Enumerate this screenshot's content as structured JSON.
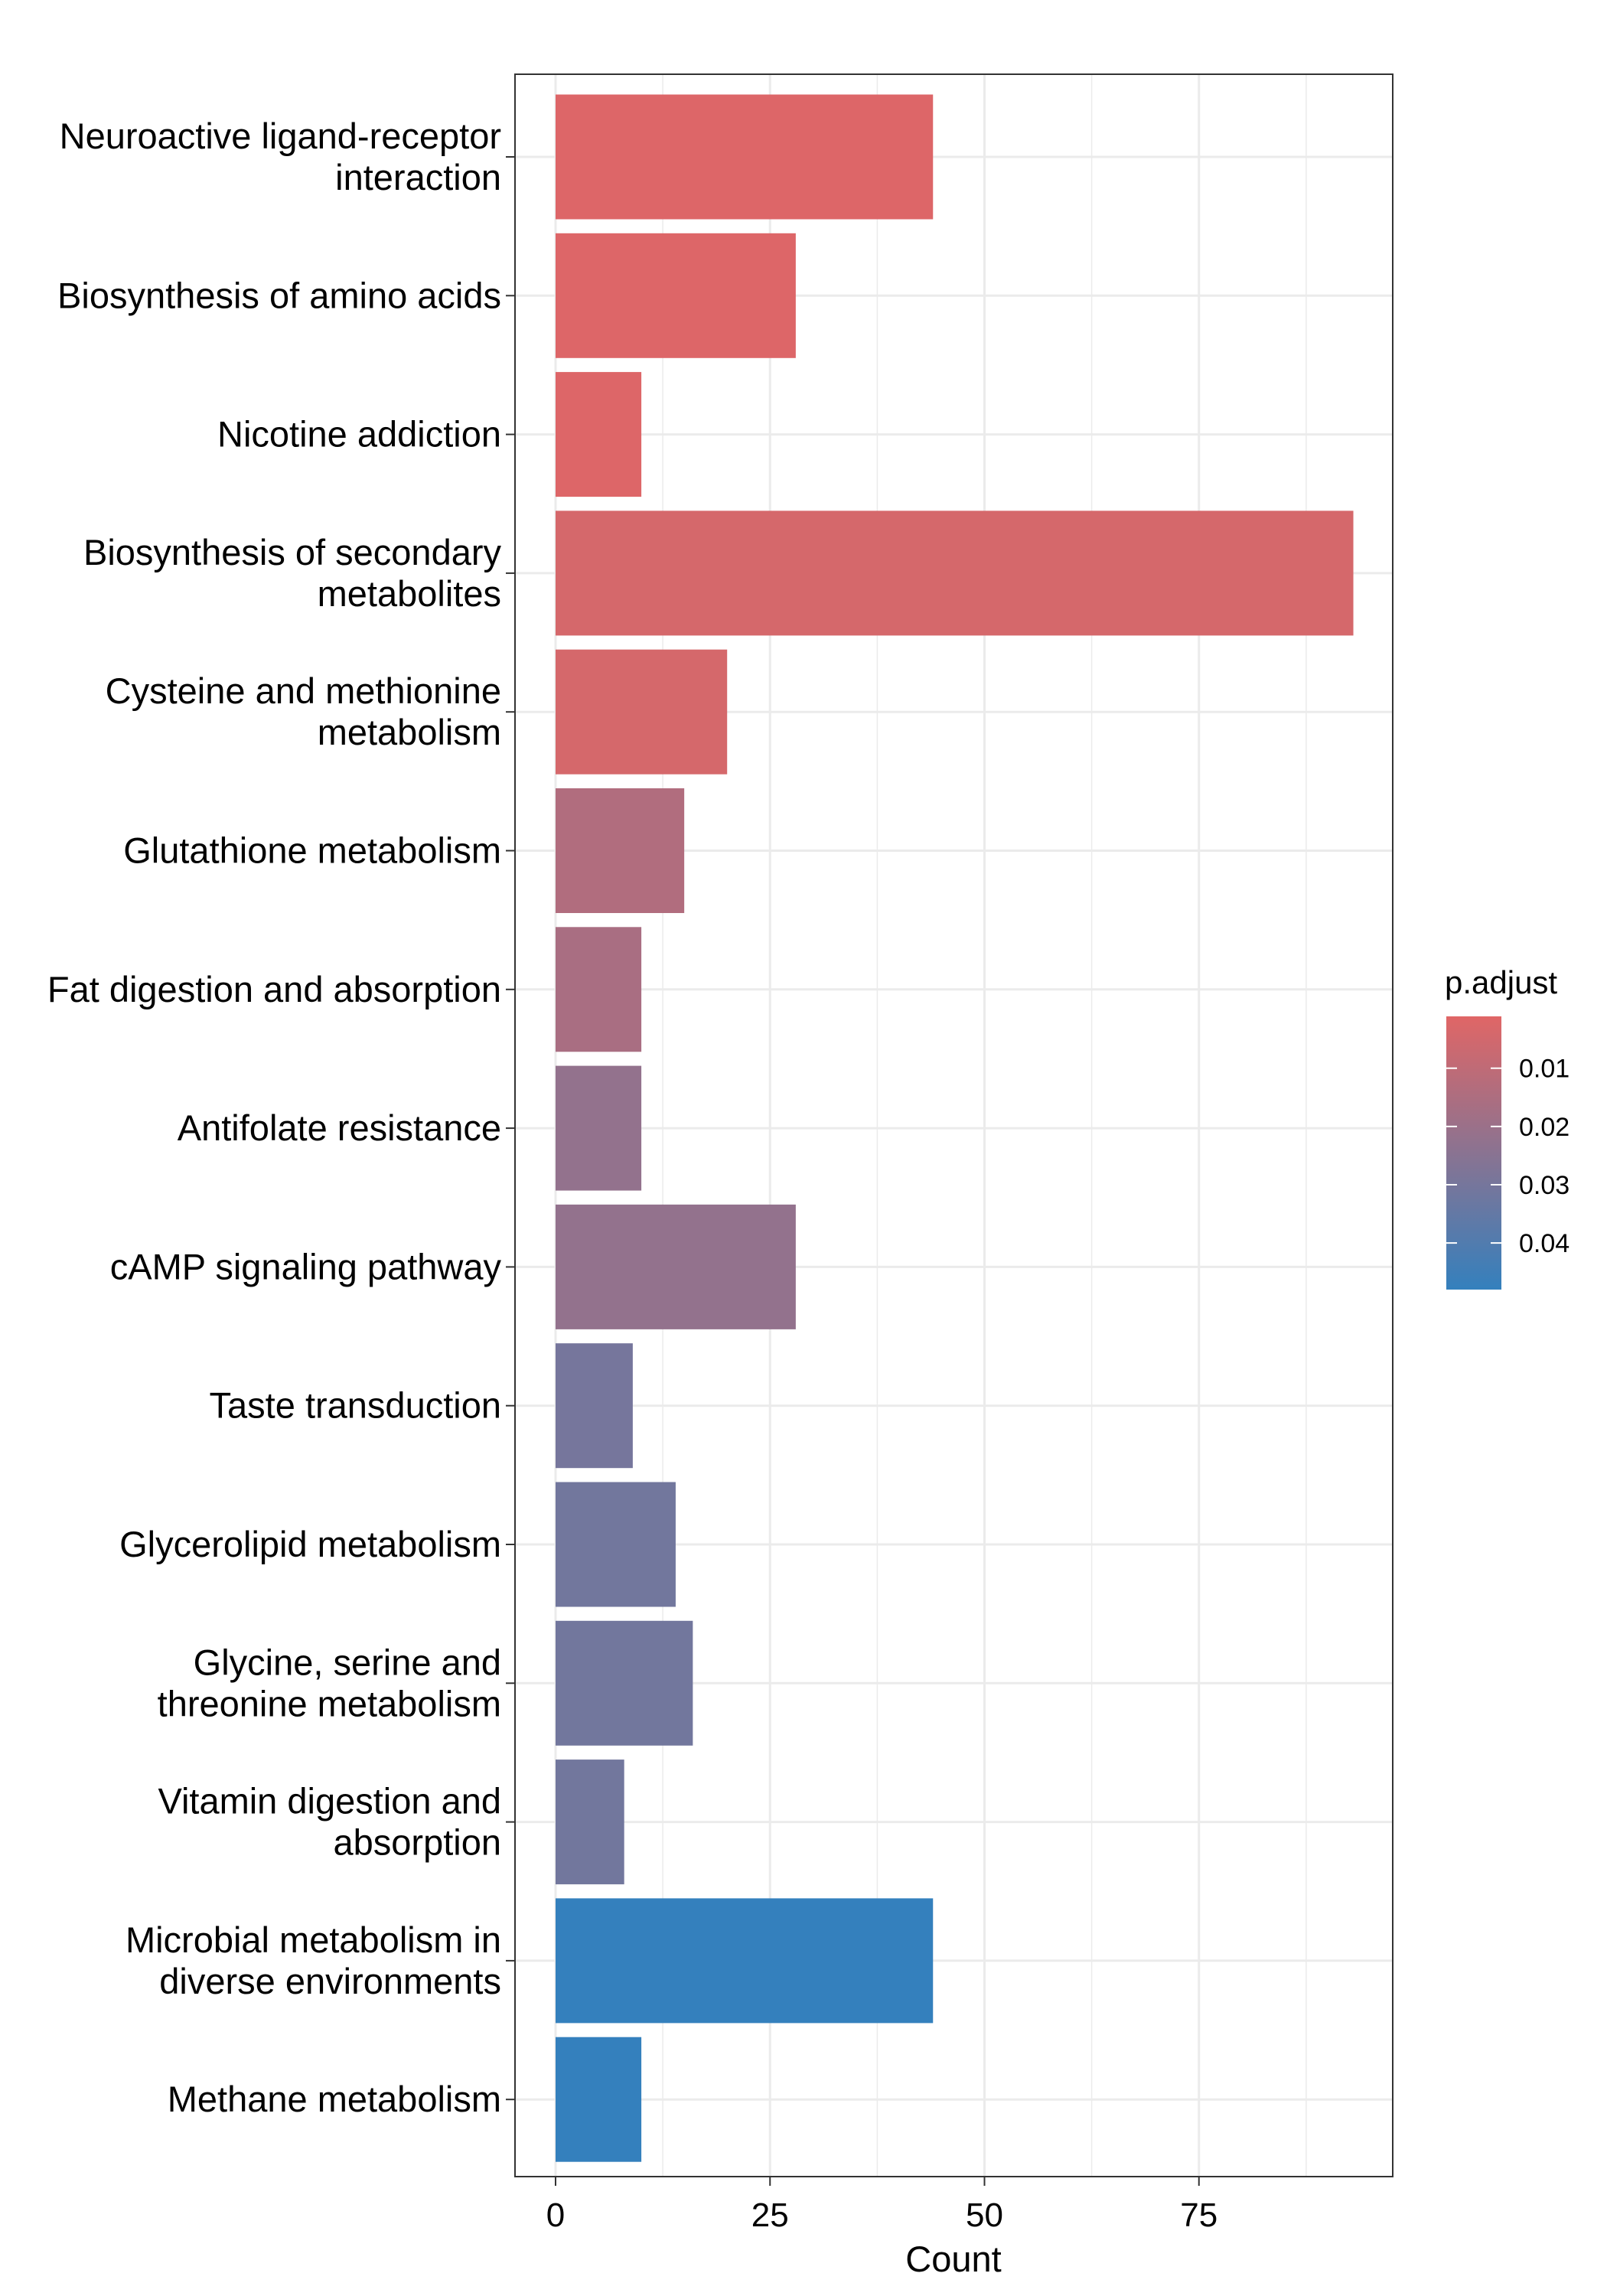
{
  "chart_data": {
    "type": "bar",
    "orientation": "horizontal",
    "xlabel": "Count",
    "ylabel": "",
    "xlim": [
      0,
      97.5
    ],
    "xticks": [
      0,
      25,
      50,
      75
    ],
    "grid": true,
    "legend": {
      "title": "p.adjust",
      "placement": "right",
      "ticks": [
        "0.01",
        "0.02",
        "0.03",
        "0.04"
      ],
      "tick_values": [
        0.01,
        0.02,
        0.03,
        0.04
      ],
      "range": [
        0.0011,
        0.048
      ],
      "color_low": "#E06666",
      "color_high": "#3480BD"
    },
    "categories": [
      [
        "Neuroactive ligand-receptor",
        "interaction"
      ],
      [
        "Biosynthesis of amino acids"
      ],
      [
        "Nicotine addiction"
      ],
      [
        "Biosynthesis of secondary",
        "metabolites"
      ],
      [
        "Cysteine and methionine",
        "metabolism"
      ],
      [
        "Glutathione metabolism"
      ],
      [
        "Fat digestion and absorption"
      ],
      [
        "Antifolate resistance"
      ],
      [
        "cAMP signaling pathway"
      ],
      [
        "Taste transduction"
      ],
      [
        "Glycerolipid metabolism"
      ],
      [
        "Glycine, serine and",
        "threonine metabolism"
      ],
      [
        "Vitamin digestion and",
        "absorption"
      ],
      [
        "Microbial metabolism in",
        "diverse environments"
      ],
      [
        "Methane metabolism"
      ]
    ],
    "values": [
      44,
      28,
      10,
      93,
      20,
      15,
      10,
      10,
      28,
      9,
      14,
      16,
      8,
      44,
      10
    ],
    "p_adjust": [
      0.002,
      0.002,
      0.002,
      0.004,
      0.004,
      0.014,
      0.016,
      0.022,
      0.022,
      0.03,
      0.031,
      0.031,
      0.031,
      0.048,
      0.048
    ]
  }
}
